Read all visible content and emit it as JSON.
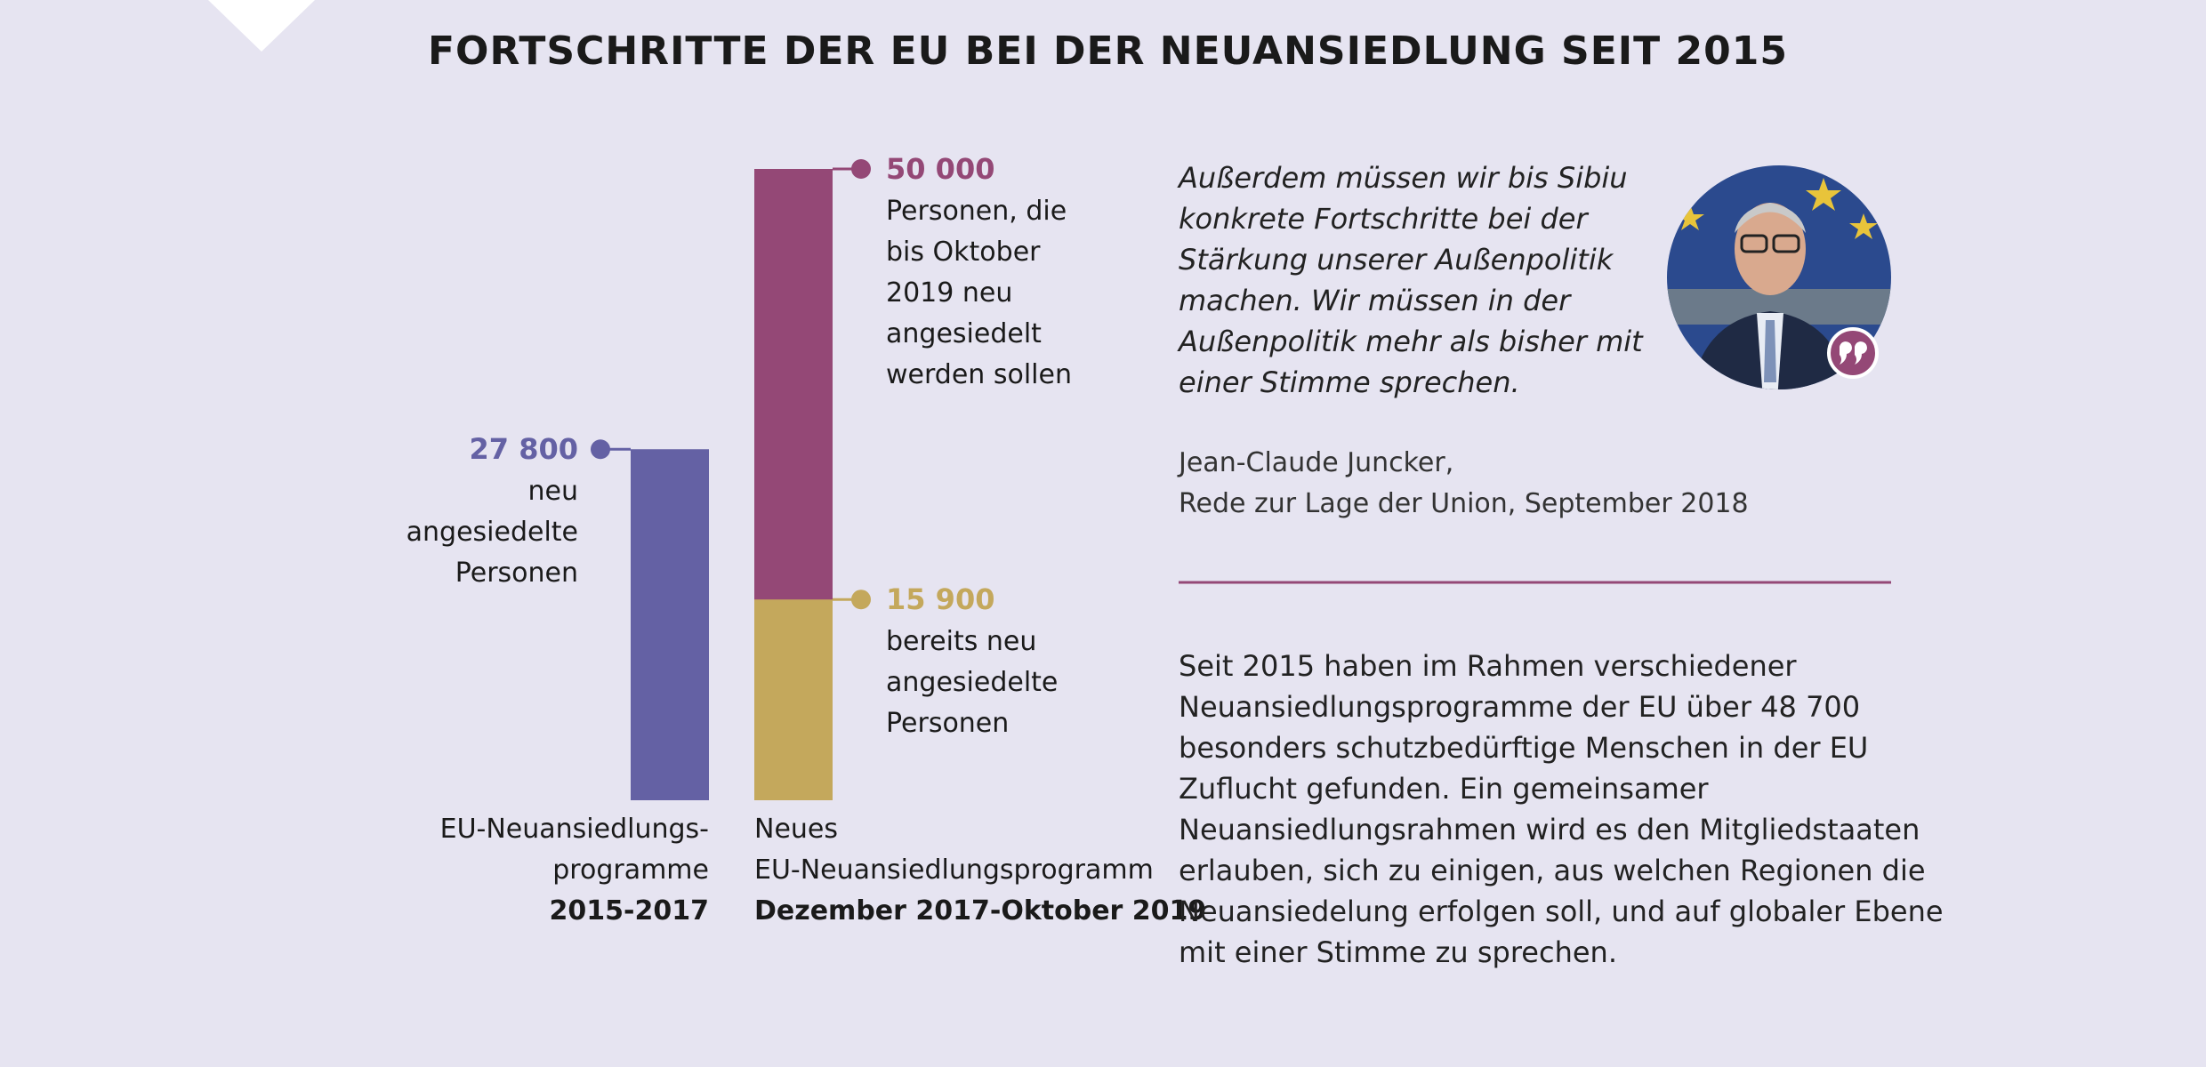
{
  "chart_data": {
    "type": "bar",
    "title": "FORTSCHRITTE DER EU BEI DER NEUANSIEDLUNG SEIT 2015",
    "ylim": [
      0,
      50000
    ],
    "groups": [
      {
        "label_lines": [
          "EU-Neuansiedlungs-",
          "programme"
        ],
        "period": "2015-2017",
        "values": [
          27800
        ],
        "value_labels": [
          "27 800"
        ],
        "colors": [
          "#6461a4"
        ],
        "descriptions": [
          [
            "neu",
            "angesiedelte",
            "Personen"
          ]
        ]
      },
      {
        "label_lines": [
          "Neues",
          "EU-Neuansiedlungsprogramm"
        ],
        "period": "Dezember 2017-Oktober 2019",
        "values": [
          50000,
          15900
        ],
        "value_labels": [
          "50 000",
          "15 900"
        ],
        "colors": [
          "#944876",
          "#c4a85c"
        ],
        "descriptions": [
          [
            "Personen, die",
            "bis Oktober",
            "2019 neu",
            "angesiedelt",
            "werden sollen"
          ],
          [
            "bereits neu",
            "angesiedelte",
            "Personen"
          ]
        ]
      }
    ]
  },
  "quote": {
    "lines": [
      "Außerdem müssen wir bis Sibiu",
      "konkrete Fortschritte bei der",
      "Stärkung unserer Außenpolitik",
      "machen. Wir müssen in der",
      "Außenpolitik mehr als bisher mit",
      "einer Stimme sprechen."
    ],
    "author": "Jean-Claude Juncker,",
    "source": "Rede zur Lage der Union, September 2018"
  },
  "body": {
    "lines": [
      "Seit 2015 haben im Rahmen verschiedener",
      "Neuansiedlungsprogramme der EU über 48 700",
      "besonders schutzbedürftige Menschen in der EU",
      "Zuflucht gefunden. Ein gemeinsamer",
      "Neuansiedlungsrahmen wird es den Mitgliedstaaten",
      "erlauben, sich zu einigen, aus welchen Regionen die",
      "Neuansiedelung erfolgen soll, und auf globaler Ebene",
      "mit einer Stimme zu sprechen."
    ]
  }
}
